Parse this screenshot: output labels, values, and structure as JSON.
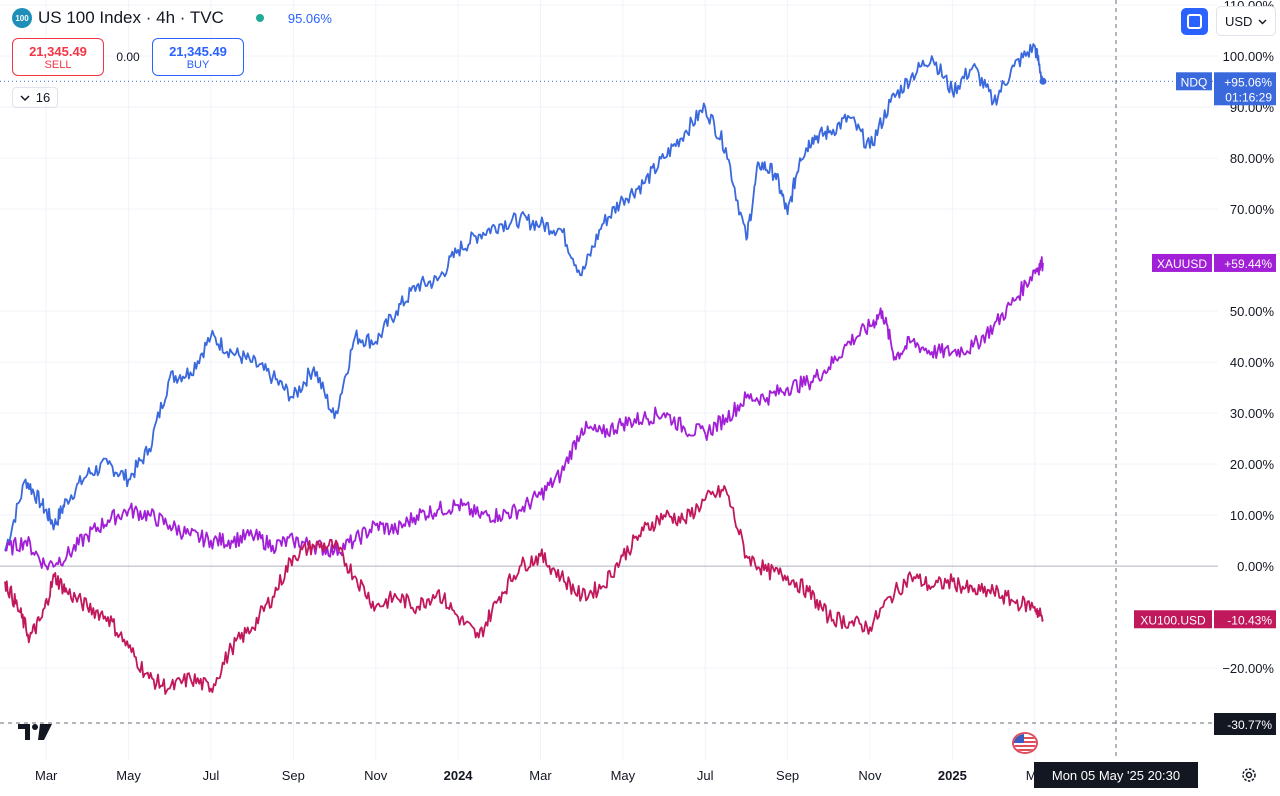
{
  "header": {
    "symbol_badge": "100",
    "title": "US 100 Index · 4h · TVC",
    "change_pct": "95.06%"
  },
  "trade": {
    "sell_price": "21,345.49",
    "sell_label": "SELL",
    "spread": "0.00",
    "buy_price": "21,345.49",
    "buy_label": "BUY"
  },
  "indicators": {
    "count": "16"
  },
  "toolbar": {
    "currency": "USD"
  },
  "colors": {
    "ndq": "#3a68dd",
    "xauusd": "#a11fd6",
    "xu100": "#c1185c",
    "zero_line": "#b2b5be",
    "grid": "#f0f3fa"
  },
  "crosshair": {
    "price_label": "-30.77%",
    "time_label": "Mon 05 May '25  20:30"
  },
  "chart_data": {
    "type": "line",
    "title": "US 100 Index · 4h · TVC",
    "x_unit": "months since Feb 1, 2023",
    "xlim": [
      0,
      26.9
    ],
    "ylim": [
      -30.77,
      111
    ],
    "y_tick_labels": [
      {
        "value": 110,
        "label": "110.00%"
      },
      {
        "value": 100,
        "label": "100.00%"
      },
      {
        "value": 90,
        "label": "90.00%"
      },
      {
        "value": 80,
        "label": "80.00%"
      },
      {
        "value": 70,
        "label": "70.00%"
      },
      {
        "value": 50,
        "label": "50.00%"
      },
      {
        "value": 40,
        "label": "40.00%"
      },
      {
        "value": 30,
        "label": "30.00%"
      },
      {
        "value": 20,
        "label": "20.00%"
      },
      {
        "value": 10,
        "label": "10.00%"
      },
      {
        "value": 0,
        "label": "0.00%"
      },
      {
        "value": -20,
        "label": "−20.00%"
      }
    ],
    "x_tick_labels": [
      {
        "value": 1,
        "label": "Mar",
        "bold": false
      },
      {
        "value": 3,
        "label": "May",
        "bold": false
      },
      {
        "value": 5,
        "label": "Jul",
        "bold": false
      },
      {
        "value": 7,
        "label": "Sep",
        "bold": false
      },
      {
        "value": 9,
        "label": "Nov",
        "bold": false
      },
      {
        "value": 11,
        "label": "2024",
        "bold": true
      },
      {
        "value": 13,
        "label": "Mar",
        "bold": false
      },
      {
        "value": 15,
        "label": "May",
        "bold": false
      },
      {
        "value": 17,
        "label": "Jul",
        "bold": false
      },
      {
        "value": 19,
        "label": "Sep",
        "bold": false
      },
      {
        "value": 21,
        "label": "Nov",
        "bold": false
      },
      {
        "value": 23,
        "label": "2025",
        "bold": true
      },
      {
        "value": 25,
        "label": "Ma",
        "bold": false
      }
    ],
    "series": [
      {
        "name": "NDQ",
        "key": "ndq",
        "last_label": "+95.06%",
        "last_value": 95.06,
        "countdown": "01:16:29",
        "x": [
          0,
          0.5,
          0.9,
          1.2,
          1.5,
          2.0,
          2.5,
          3.0,
          3.5,
          4.0,
          4.5,
          5.0,
          5.5,
          6.0,
          6.5,
          7.0,
          7.5,
          8.0,
          8.5,
          9.0,
          9.5,
          10.0,
          10.5,
          11.0,
          11.5,
          12.0,
          12.5,
          13.0,
          13.5,
          14.0,
          14.5,
          15.0,
          15.5,
          16.0,
          16.5,
          17.0,
          17.5,
          18.0,
          18.3,
          18.7,
          19.0,
          19.3,
          19.6,
          20.0,
          20.5,
          21.0,
          21.5,
          22.0,
          22.5,
          23.0,
          23.5,
          24.0,
          24.5,
          25.0,
          25.2
        ],
        "y": [
          3,
          17,
          12,
          8,
          13,
          18,
          20,
          17,
          23,
          37,
          38,
          45,
          42,
          40,
          37,
          33,
          39,
          29,
          45,
          44,
          50,
          55,
          56,
          62,
          65,
          67,
          68,
          67,
          66,
          57,
          67,
          72,
          75,
          80,
          85,
          90,
          82,
          64,
          79,
          77,
          69,
          80,
          84,
          85,
          88,
          82,
          91,
          96,
          100,
          93,
          98,
          91,
          98,
          102,
          95.06
        ]
      },
      {
        "name": "XAUUSD",
        "key": "xauusd",
        "last_label": "+59.44%",
        "last_value": 59.44,
        "x": [
          0,
          0.5,
          1.0,
          1.5,
          2.0,
          2.5,
          3.0,
          3.5,
          4.0,
          4.5,
          5.0,
          5.5,
          6.0,
          6.5,
          7.0,
          7.5,
          8.0,
          8.5,
          9.0,
          9.5,
          10.0,
          10.5,
          11.0,
          11.5,
          12.0,
          12.5,
          13.0,
          13.5,
          14.0,
          14.5,
          15.0,
          15.5,
          16.0,
          16.5,
          17.0,
          17.5,
          18.0,
          18.5,
          19.0,
          19.5,
          20.0,
          20.5,
          21.0,
          21.3,
          21.6,
          22.0,
          22.5,
          23.0,
          23.5,
          24.0,
          24.5,
          25.0,
          25.2
        ],
        "y": [
          3,
          5,
          0,
          2,
          6,
          9,
          11,
          10,
          8,
          6,
          5,
          5,
          6,
          4,
          5,
          4,
          3,
          5,
          8,
          7,
          10,
          11,
          12,
          10,
          10,
          11,
          14,
          18,
          27,
          26,
          28,
          29,
          30,
          27,
          26,
          29,
          33,
          33,
          35,
          36,
          39,
          44,
          47,
          50,
          41,
          44,
          42,
          42,
          43,
          47,
          52,
          58,
          59.44
        ]
      },
      {
        "name": "XU100.USD",
        "key": "xu100",
        "last_label": "-10.43%",
        "last_value": -10.43,
        "x": [
          0,
          0.3,
          0.6,
          0.9,
          1.2,
          1.5,
          2.0,
          2.5,
          3.0,
          3.5,
          4.0,
          4.5,
          5.0,
          5.5,
          6.0,
          6.5,
          7.0,
          7.5,
          8.0,
          8.5,
          9.0,
          9.5,
          10.0,
          10.5,
          11.0,
          11.5,
          12.0,
          12.5,
          13.0,
          13.5,
          14.0,
          14.5,
          15.0,
          15.5,
          16.0,
          16.5,
          17.0,
          17.5,
          18.0,
          18.5,
          19.0,
          19.5,
          20.0,
          20.5,
          21.0,
          21.5,
          22.0,
          22.5,
          23.0,
          23.5,
          24.0,
          24.5,
          25.0,
          25.2
        ],
        "y": [
          -3,
          -8,
          -14,
          -10,
          -2,
          -5,
          -8,
          -10,
          -16,
          -22,
          -24,
          -22,
          -24,
          -16,
          -12,
          -6,
          2,
          4,
          4,
          -2,
          -8,
          -6,
          -8,
          -5,
          -10,
          -14,
          -6,
          0,
          2,
          -2,
          -6,
          -4,
          2,
          7,
          10,
          9,
          13,
          15,
          2,
          -1,
          -2,
          -5,
          -10,
          -11,
          -12,
          -6,
          -2,
          -4,
          -3,
          -5,
          -5,
          -7,
          -8,
          -10.43
        ]
      }
    ]
  }
}
